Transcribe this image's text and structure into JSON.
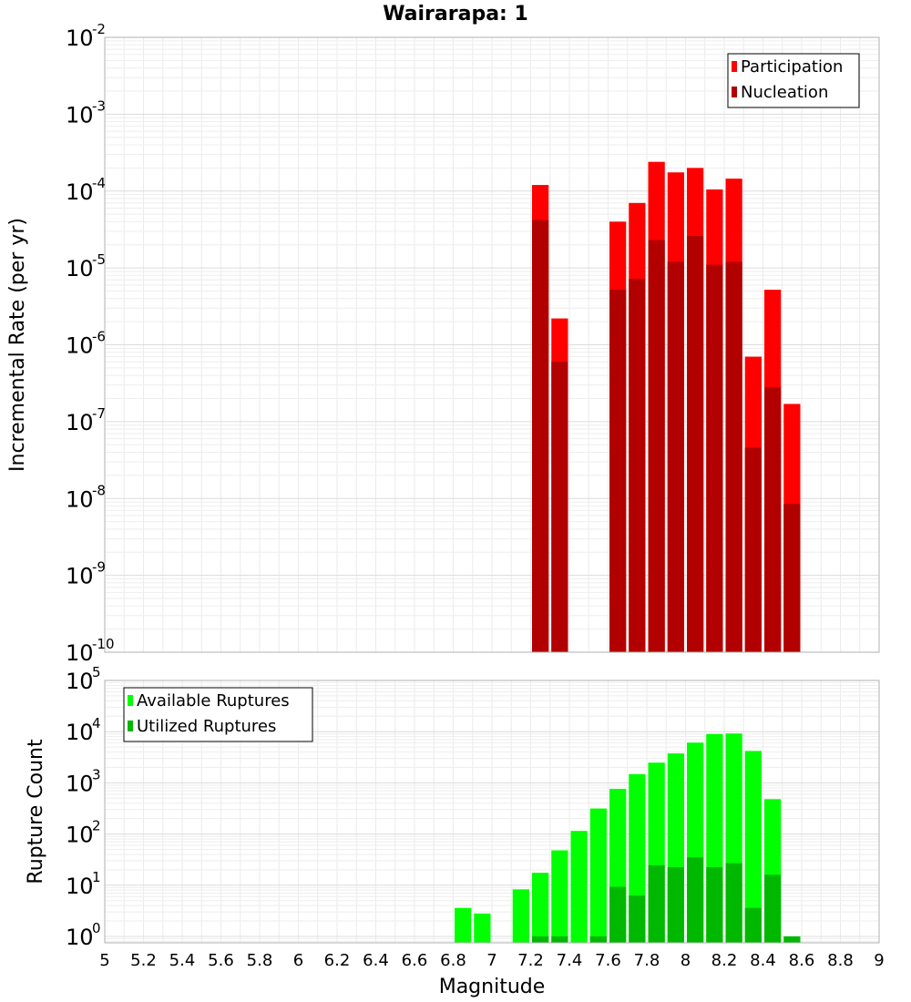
{
  "chart_data": [
    {
      "type": "bar",
      "title": "Wairarapa: 1",
      "xlabel": "",
      "ylabel": "Incremental Rate (per yr)",
      "yscale": "log",
      "ylim": [
        1e-10,
        0.01
      ],
      "xlim": [
        5,
        9
      ],
      "bin_width": 0.1,
      "legend_position": "top-right",
      "grid": true,
      "x": [
        7.25,
        7.35,
        7.65,
        7.75,
        7.85,
        7.95,
        8.05,
        8.15,
        8.25,
        8.35,
        8.45,
        8.55
      ],
      "series": [
        {
          "name": "Participation",
          "color": "#ff0000",
          "values": [
            0.00012,
            2.2e-06,
            4e-05,
            7e-05,
            0.00024,
            0.000175,
            0.0002,
            0.000105,
            0.000145,
            7e-07,
            5.2e-06,
            1.7e-07
          ]
        },
        {
          "name": "Nucleation",
          "color": "#b20000",
          "values": [
            4.2e-05,
            6e-07,
            5.2e-06,
            7.2e-06,
            2.3e-05,
            1.2e-05,
            2.6e-05,
            1.1e-05,
            1.2e-05,
            4.6e-08,
            2.8e-07,
            8.5e-09
          ]
        }
      ]
    },
    {
      "type": "bar",
      "title": "",
      "xlabel": "Magnitude",
      "ylabel": "Rupture Count",
      "yscale": "log",
      "ylim": [
        0.75,
        100000.0
      ],
      "xlim": [
        5,
        9
      ],
      "x_ticks": [
        "5",
        "5.2",
        "5.4",
        "5.6",
        "5.8",
        "6",
        "6.2",
        "6.4",
        "6.6",
        "6.8",
        "7",
        "7.2",
        "7.4",
        "7.6",
        "7.8",
        "8",
        "8.2",
        "8.4",
        "8.6",
        "8.8",
        "9"
      ],
      "bin_width": 0.1,
      "legend_position": "top-left",
      "grid": true,
      "x": [
        6.85,
        6.95,
        7.15,
        7.25,
        7.35,
        7.45,
        7.55,
        7.65,
        7.75,
        7.85,
        7.95,
        8.05,
        8.15,
        8.25,
        8.35,
        8.45,
        8.55
      ],
      "series": [
        {
          "name": "Available Ruptures",
          "color": "#00ff00",
          "values": [
            3.6,
            2.8,
            8.3,
            17.5,
            48,
            115,
            315,
            760,
            1480,
            2480,
            3750,
            6100,
            9000,
            9200,
            4200,
            480,
            0
          ]
        },
        {
          "name": "Utilized Ruptures",
          "color": "#00b800",
          "values": [
            0,
            0,
            0,
            1,
            1,
            0,
            1,
            9.3,
            6.3,
            24.5,
            22.5,
            35,
            22.5,
            27,
            3.6,
            16,
            1
          ]
        }
      ]
    }
  ]
}
